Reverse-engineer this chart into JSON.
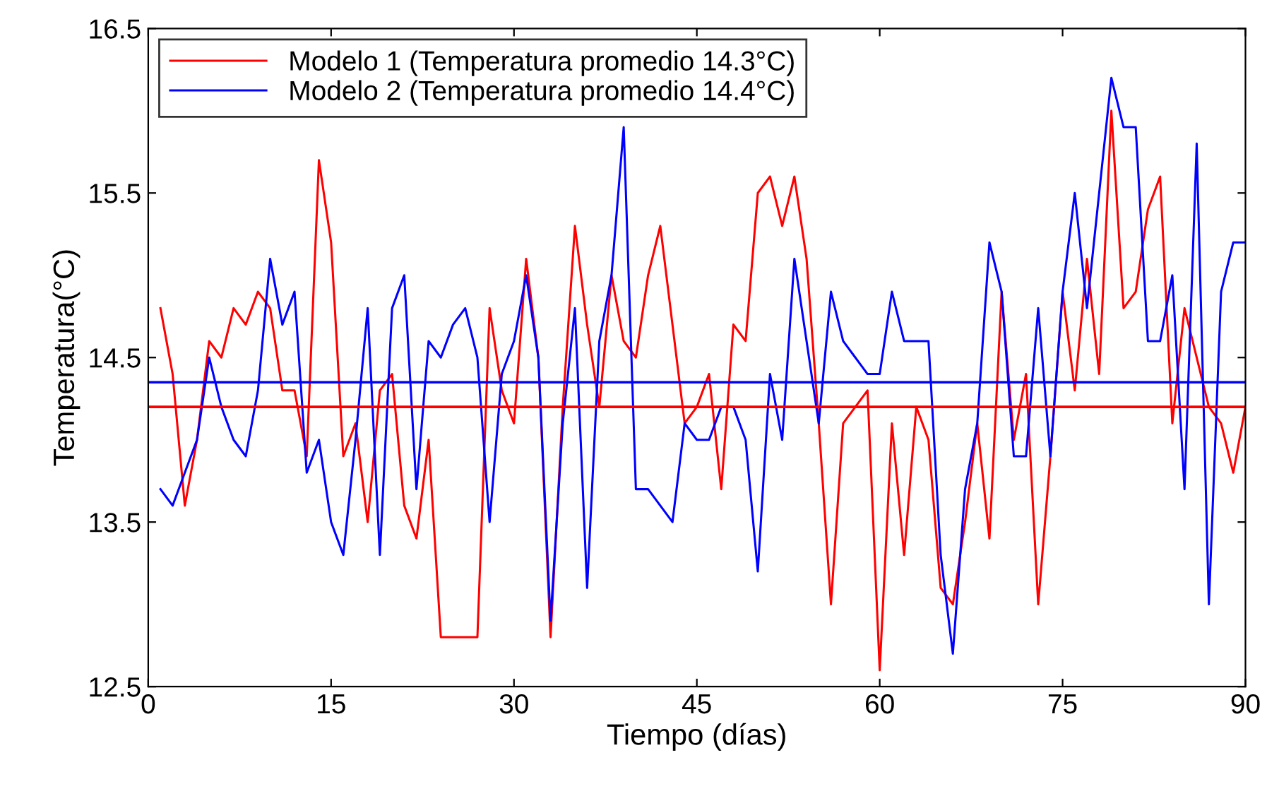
{
  "chart_data": {
    "type": "line",
    "xlabel": "Tiempo (días)",
    "ylabel": "Temperatura(°C)",
    "x": [
      1,
      2,
      3,
      4,
      5,
      6,
      7,
      8,
      9,
      10,
      11,
      12,
      13,
      14,
      15,
      16,
      17,
      18,
      19,
      20,
      21,
      22,
      23,
      24,
      25,
      26,
      27,
      28,
      29,
      30,
      31,
      32,
      33,
      34,
      35,
      36,
      37,
      38,
      39,
      40,
      41,
      42,
      43,
      44,
      45,
      46,
      47,
      48,
      49,
      50,
      51,
      52,
      53,
      54,
      55,
      56,
      57,
      58,
      59,
      60,
      61,
      62,
      63,
      64,
      65,
      66,
      67,
      68,
      69,
      70,
      71,
      72,
      73,
      74,
      75,
      76,
      77,
      78,
      79,
      80,
      81,
      82,
      83,
      84,
      85,
      86,
      87,
      88,
      89,
      90
    ],
    "series": [
      {
        "name": "Modelo 1 (Temperatura promedio 14.3°C)",
        "color": "#ff0000",
        "values": [
          14.8,
          14.4,
          13.6,
          14.0,
          14.6,
          14.5,
          14.8,
          14.7,
          14.9,
          14.8,
          14.3,
          14.3,
          13.9,
          15.7,
          15.2,
          13.9,
          14.1,
          13.5,
          14.3,
          14.4,
          13.6,
          13.4,
          14.0,
          12.8,
          12.8,
          12.8,
          12.8,
          14.8,
          14.3,
          14.1,
          15.1,
          14.5,
          12.8,
          14.2,
          15.3,
          14.7,
          14.2,
          15.0,
          14.6,
          14.5,
          15.0,
          15.3,
          14.7,
          14.1,
          14.2,
          14.4,
          13.7,
          14.7,
          14.6,
          15.5,
          15.6,
          15.3,
          15.6,
          15.1,
          14.1,
          13.0,
          14.1,
          14.2,
          14.3,
          12.6,
          14.1,
          13.3,
          14.2,
          14.0,
          13.1,
          13.0,
          13.5,
          14.1,
          13.4,
          14.9,
          14.0,
          14.4,
          13.0,
          13.9,
          14.9,
          14.3,
          15.1,
          14.4,
          16.0,
          14.8,
          14.9,
          15.4,
          15.6,
          14.1,
          14.8,
          14.5,
          14.2,
          14.1,
          13.8,
          14.2
        ]
      },
      {
        "name": "Modelo 2 (Temperatura promedio 14.4°C)",
        "color": "#0000ff",
        "values": [
          13.7,
          13.6,
          13.8,
          14.0,
          14.5,
          14.2,
          14.0,
          13.9,
          14.3,
          15.1,
          14.7,
          14.9,
          13.8,
          14.0,
          13.5,
          13.3,
          14.0,
          14.8,
          13.3,
          14.8,
          15.0,
          13.7,
          14.6,
          14.5,
          14.7,
          14.8,
          14.5,
          13.5,
          14.4,
          14.6,
          15.0,
          14.5,
          12.9,
          14.1,
          14.8,
          13.1,
          14.6,
          15.0,
          15.9,
          13.7,
          13.7,
          13.6,
          13.5,
          14.1,
          14.0,
          14.0,
          14.2,
          14.2,
          14.0,
          13.2,
          14.4,
          14.0,
          15.1,
          14.6,
          14.1,
          14.9,
          14.6,
          14.5,
          14.4,
          14.4,
          14.9,
          14.6,
          14.6,
          14.6,
          13.3,
          12.7,
          13.7,
          14.1,
          15.2,
          14.9,
          13.9,
          13.9,
          14.8,
          13.9,
          14.9,
          15.5,
          14.8,
          15.5,
          16.2,
          15.9,
          15.9,
          14.6,
          14.6,
          15.0,
          13.7,
          15.8,
          13.0,
          14.9,
          15.2,
          15.2
        ]
      }
    ],
    "ref_lines": [
      {
        "axis": "y",
        "value": 14.2,
        "color": "#ff0000"
      },
      {
        "axis": "y",
        "value": 14.35,
        "color": "#0000ff"
      }
    ],
    "xlim": [
      0,
      90
    ],
    "xticks": [
      0,
      15,
      30,
      45,
      60,
      75,
      90
    ],
    "ylim": [
      12.5,
      16.5
    ],
    "yticks": [
      12.5,
      13.5,
      14.5,
      15.5,
      16.5
    ],
    "grid": false,
    "legend": "top left",
    "line_style": "solid",
    "marker": "none"
  }
}
